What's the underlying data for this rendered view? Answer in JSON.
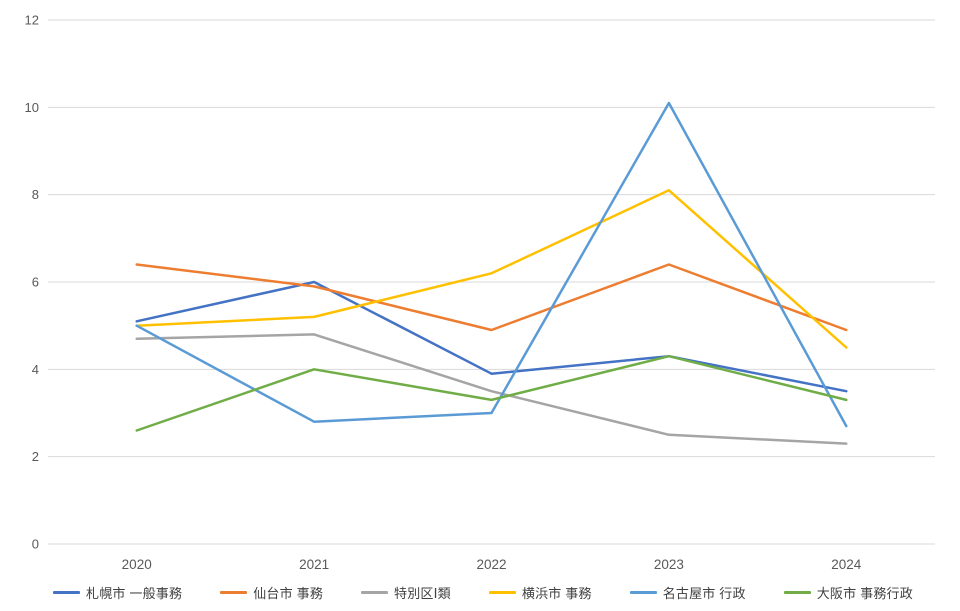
{
  "chart_data": {
    "type": "line",
    "title": "",
    "xlabel": "",
    "ylabel": "",
    "categories": [
      "2020",
      "2021",
      "2022",
      "2023",
      "2024"
    ],
    "series": [
      {
        "name": "札幌市 一般事務",
        "color": "#4472C4",
        "values": [
          5.1,
          6.0,
          3.9,
          4.3,
          3.5
        ]
      },
      {
        "name": "仙台市 事務",
        "color": "#ED7D31",
        "values": [
          6.4,
          5.9,
          4.9,
          6.4,
          4.9
        ]
      },
      {
        "name": "特別区Ⅰ類",
        "color": "#A5A5A5",
        "values": [
          4.7,
          4.8,
          3.5,
          2.5,
          2.3
        ]
      },
      {
        "name": "横浜市 事務",
        "color": "#FFC000",
        "values": [
          5.0,
          5.2,
          6.2,
          8.1,
          4.5
        ]
      },
      {
        "name": "名古屋市 行政",
        "color": "#5B9BD5",
        "values": [
          5.0,
          2.8,
          3.0,
          10.1,
          2.7
        ]
      },
      {
        "name": "大阪市 事務行政",
        "color": "#70AD47",
        "values": [
          2.6,
          4.0,
          3.3,
          4.3,
          3.3
        ]
      }
    ],
    "y_ticks": [
      0,
      2,
      4,
      6,
      8,
      10,
      12
    ],
    "ylim": [
      0,
      12
    ],
    "grid": true,
    "legend_position": "bottom",
    "colors": {
      "gridline": "#D9D9D9",
      "axis_label": "#595959",
      "legend_text": "#404040",
      "background": "#FFFFFF"
    }
  }
}
